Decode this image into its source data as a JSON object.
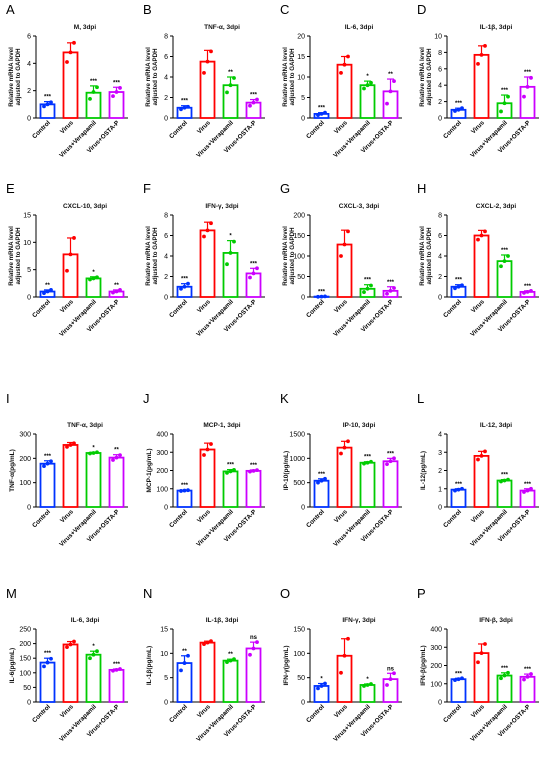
{
  "chart_data": [
    {
      "panel": "A",
      "type": "bar",
      "title": "M, 3dpi",
      "ylabel": "Relative mRNA level adjusted to GAPDH",
      "ylim": [
        0,
        6
      ],
      "yticks": [
        0,
        2,
        4,
        6
      ],
      "categories": [
        "Control",
        "Virus",
        "Virus+Verapamil",
        "Virus+OSTA-P"
      ],
      "values": [
        1.0,
        4.8,
        1.85,
        1.9
      ],
      "errors": [
        0.2,
        0.7,
        0.5,
        0.35
      ],
      "points": [
        [
          0.85,
          1.0,
          1.15
        ],
        [
          4.1,
          4.8,
          5.5
        ],
        [
          1.4,
          1.9,
          2.25
        ],
        [
          1.6,
          1.9,
          2.2
        ]
      ],
      "sig": [
        "***",
        "",
        "***",
        "***"
      ]
    },
    {
      "panel": "B",
      "type": "bar",
      "title": "TNF-α, 3dpi",
      "ylabel": "Relative mRNA level adjusted to GAPDH",
      "ylim": [
        0,
        8
      ],
      "yticks": [
        0,
        2,
        4,
        6,
        8
      ],
      "categories": [
        "Control",
        "Virus",
        "Virus+Verapamil",
        "Virus+OSTA-P"
      ],
      "values": [
        1.0,
        5.5,
        3.2,
        1.5
      ],
      "errors": [
        0.2,
        1.1,
        0.8,
        0.3
      ],
      "points": [
        [
          0.85,
          1.0,
          1.1
        ],
        [
          4.4,
          5.5,
          6.5
        ],
        [
          2.5,
          3.2,
          3.9
        ],
        [
          1.2,
          1.5,
          1.8
        ]
      ],
      "sig": [
        "***",
        "",
        "**",
        "***"
      ]
    },
    {
      "panel": "C",
      "type": "bar",
      "title": "IL-6, 3dpi",
      "ylabel": "Relative mRNA level adjusted to GAPDH",
      "ylim": [
        0,
        20
      ],
      "yticks": [
        0,
        5,
        10,
        15,
        20
      ],
      "categories": [
        "Control",
        "Virus",
        "Virus+Verapamil",
        "Virus+OSTA-P"
      ],
      "values": [
        1.0,
        13.0,
        8.0,
        6.5
      ],
      "errors": [
        0.3,
        2.0,
        1.0,
        3.0
      ],
      "points": [
        [
          0.7,
          1.0,
          1.3
        ],
        [
          11.0,
          13.0,
          15.0
        ],
        [
          7.2,
          8.0,
          8.6
        ],
        [
          3.5,
          6.5,
          9.0
        ]
      ],
      "sig": [
        "***",
        "",
        "*",
        "**"
      ]
    },
    {
      "panel": "D",
      "type": "bar",
      "title": "IL-1β, 3dpi",
      "ylabel": "Relative mRNA level adjusted to GAPDH",
      "ylim": [
        0,
        10
      ],
      "yticks": [
        0,
        2,
        4,
        6,
        8,
        10
      ],
      "categories": [
        "Control",
        "Virus",
        "Virus+Verapamil",
        "Virus+OSTA-P"
      ],
      "values": [
        1.0,
        7.7,
        1.8,
        3.8
      ],
      "errors": [
        0.2,
        1.1,
        1.0,
        1.2
      ],
      "points": [
        [
          0.85,
          1.0,
          1.2
        ],
        [
          6.6,
          7.7,
          8.8
        ],
        [
          0.8,
          1.8,
          2.6
        ],
        [
          2.6,
          3.8,
          4.9
        ]
      ],
      "sig": [
        "***",
        "",
        "***",
        "***"
      ]
    },
    {
      "panel": "E",
      "type": "bar",
      "title": "CXCL-10, 3dpi",
      "ylabel": "Relative mRNA level adjusted to GAPDH",
      "ylim": [
        0,
        15
      ],
      "yticks": [
        0,
        5,
        10,
        15
      ],
      "categories": [
        "Control",
        "Virus",
        "Virus+Verapamil",
        "Virus+OSTA-P"
      ],
      "values": [
        1.0,
        7.8,
        3.4,
        1.0
      ],
      "errors": [
        0.3,
        3.0,
        0.3,
        0.3
      ],
      "points": [
        [
          0.7,
          1.0,
          1.3
        ],
        [
          4.8,
          7.8,
          10.8
        ],
        [
          3.2,
          3.4,
          3.6
        ],
        [
          0.8,
          1.0,
          1.3
        ]
      ],
      "sig": [
        "**",
        "",
        "*",
        "**"
      ]
    },
    {
      "panel": "F",
      "type": "bar",
      "title": "IFN-γ, 3dpi",
      "ylabel": "Relative mRNA level adjusted to GAPDH",
      "ylim": [
        0,
        8
      ],
      "yticks": [
        0,
        2,
        4,
        6,
        8
      ],
      "categories": [
        "Control",
        "Virus",
        "Virus+Verapamil",
        "Virus+OSTA-P"
      ],
      "values": [
        1.0,
        6.5,
        4.3,
        2.3
      ],
      "errors": [
        0.3,
        0.8,
        1.2,
        0.5
      ],
      "points": [
        [
          0.8,
          1.0,
          1.3
        ],
        [
          5.9,
          6.5,
          7.2
        ],
        [
          3.2,
          4.3,
          5.4
        ],
        [
          1.9,
          2.3,
          2.8
        ]
      ],
      "sig": [
        "***",
        "",
        "*",
        "***"
      ]
    },
    {
      "panel": "G",
      "type": "bar",
      "title": "CXCL-3, 3dpi",
      "ylabel": "Relative mRNA level adjusted to GAPDH",
      "ylim": [
        0,
        200
      ],
      "yticks": [
        0,
        50,
        100,
        150,
        200
      ],
      "categories": [
        "Control",
        "Virus",
        "Virus+Verapamil",
        "Virus+OSTA-P"
      ],
      "values": [
        1,
        128,
        20,
        15
      ],
      "errors": [
        0.5,
        35,
        10,
        10
      ],
      "points": [
        [
          0.5,
          1,
          1.5
        ],
        [
          100,
          128,
          160
        ],
        [
          12,
          20,
          28
        ],
        [
          8,
          15,
          22
        ]
      ],
      "sig": [
        "***",
        "",
        "***",
        "***"
      ]
    },
    {
      "panel": "H",
      "type": "bar",
      "title": "CXCL-2, 3dpi",
      "ylabel": "Relative mRNA level adjusted to GAPDH",
      "ylim": [
        0,
        8
      ],
      "yticks": [
        0,
        2,
        4,
        6,
        8
      ],
      "categories": [
        "Control",
        "Virus",
        "Virus+Verapamil",
        "Virus+OSTA-P"
      ],
      "values": [
        1.0,
        6.0,
        3.5,
        0.5
      ],
      "errors": [
        0.2,
        0.5,
        0.6,
        0.1
      ],
      "points": [
        [
          0.85,
          1.0,
          1.15
        ],
        [
          5.6,
          6.0,
          6.4
        ],
        [
          3.0,
          3.5,
          4.0
        ],
        [
          0.4,
          0.5,
          0.6
        ]
      ],
      "sig": [
        "***",
        "",
        "***",
        "***"
      ]
    },
    {
      "panel": "I",
      "type": "bar",
      "title": "TNF-α, 3dpi",
      "ylabel": "TNF-α(pg/mL)",
      "ylim": [
        0,
        300
      ],
      "yticks": [
        0,
        100,
        200,
        300
      ],
      "categories": [
        "Control",
        "Virus",
        "Virus+Verapamil",
        "Virus+OSTA-P"
      ],
      "values": [
        178,
        255,
        222,
        203
      ],
      "errors": [
        12,
        10,
        3,
        12
      ],
      "points": [
        [
          168,
          178,
          188
        ],
        [
          247,
          255,
          262
        ],
        [
          220,
          222,
          225
        ],
        [
          193,
          203,
          213
        ]
      ],
      "sig": [
        "***",
        "",
        "*",
        "**"
      ]
    },
    {
      "panel": "J",
      "type": "bar",
      "title": "MCP-1, 3dpi",
      "ylabel": "MCP-1(pg/mL)",
      "ylim": [
        0,
        400
      ],
      "yticks": [
        0,
        100,
        200,
        300,
        400
      ],
      "categories": [
        "Control",
        "Virus",
        "Virus+Verapamil",
        "Virus+OSTA-P"
      ],
      "values": [
        90,
        315,
        195,
        198
      ],
      "errors": [
        3,
        35,
        10,
        5
      ],
      "points": [
        [
          88,
          90,
          92
        ],
        [
          285,
          315,
          345
        ],
        [
          187,
          195,
          203
        ],
        [
          194,
          198,
          202
        ]
      ],
      "sig": [
        "***",
        "",
        "***",
        "***"
      ]
    },
    {
      "panel": "K",
      "type": "bar",
      "title": "IP-10, 3dpi",
      "ylabel": "IP-10(pg/mL)",
      "ylim": [
        0,
        1500
      ],
      "yticks": [
        0,
        500,
        1000,
        1500
      ],
      "categories": [
        "Control",
        "Virus",
        "Virus+Verapamil",
        "Virus+OSTA-P"
      ],
      "values": [
        540,
        1220,
        910,
        940
      ],
      "errors": [
        40,
        130,
        20,
        60
      ],
      "points": [
        [
          500,
          540,
          580
        ],
        [
          1100,
          1220,
          1350
        ],
        [
          890,
          910,
          930
        ],
        [
          880,
          940,
          1000
        ]
      ],
      "sig": [
        "***",
        "",
        "***",
        "***"
      ]
    },
    {
      "panel": "L",
      "type": "bar",
      "title": "IL-12, 3dpi",
      "ylabel": "IL-12(pg/mL)",
      "ylim": [
        0,
        4
      ],
      "yticks": [
        0,
        1,
        2,
        3,
        4
      ],
      "categories": [
        "Control",
        "Virus",
        "Virus+Verapamil",
        "Virus+OSTA-P"
      ],
      "values": [
        0.95,
        2.8,
        1.45,
        0.9
      ],
      "errors": [
        0.05,
        0.25,
        0.05,
        0.1
      ],
      "points": [
        [
          0.9,
          0.95,
          1.0
        ],
        [
          2.6,
          2.8,
          3.05
        ],
        [
          1.4,
          1.45,
          1.5
        ],
        [
          0.82,
          0.9,
          1.0
        ]
      ],
      "sig": [
        "***",
        "",
        "***",
        "***"
      ]
    },
    {
      "panel": "M",
      "type": "bar",
      "title": "IL-6, 3dpi",
      "ylabel": "IL-6(pg/mL)",
      "ylim": [
        0,
        250
      ],
      "yticks": [
        0,
        50,
        100,
        150,
        200,
        250
      ],
      "categories": [
        "Control",
        "Virus",
        "Virus+Verapamil",
        "Virus+OSTA-P"
      ],
      "values": [
        135,
        197,
        162,
        110
      ],
      "errors": [
        15,
        10,
        12,
        3
      ],
      "points": [
        [
          122,
          135,
          148
        ],
        [
          188,
          197,
          207
        ],
        [
          150,
          162,
          174
        ],
        [
          107,
          110,
          113
        ]
      ],
      "sig": [
        "***",
        "",
        "*",
        "***"
      ]
    },
    {
      "panel": "N",
      "type": "bar",
      "title": "IL-1β, 3dpi",
      "ylabel": "IL-1β(pg/mL)",
      "ylim": [
        0,
        15
      ],
      "yticks": [
        0,
        5,
        10,
        15
      ],
      "categories": [
        "Control",
        "Virus",
        "Virus+Verapamil",
        "Virus+OSTA-P"
      ],
      "values": [
        8.0,
        12.2,
        8.5,
        11.0
      ],
      "errors": [
        1.5,
        0.3,
        0.3,
        1.3
      ],
      "points": [
        [
          6.5,
          8.0,
          9.5
        ],
        [
          11.9,
          12.2,
          12.5
        ],
        [
          8.2,
          8.5,
          8.8
        ],
        [
          9.7,
          11.0,
          12.3
        ]
      ],
      "sig": [
        "**",
        "",
        "**",
        "ns"
      ]
    },
    {
      "panel": "O",
      "type": "bar",
      "title": "IFN-γ, 3dpi",
      "ylabel": "IFN-γ(pg/mL)",
      "ylim": [
        0,
        150
      ],
      "yticks": [
        0,
        50,
        100,
        150
      ],
      "categories": [
        "Control",
        "Virus",
        "Virus+Verapamil",
        "Virus+OSTA-P"
      ],
      "values": [
        33,
        95,
        35,
        47
      ],
      "errors": [
        5,
        35,
        2,
        12
      ],
      "points": [
        [
          28,
          33,
          38
        ],
        [
          60,
          95,
          130
        ],
        [
          33,
          35,
          37
        ],
        [
          35,
          47,
          59
        ]
      ],
      "sig": [
        "*",
        "",
        "*",
        "ns"
      ]
    },
    {
      "panel": "P",
      "type": "bar",
      "title": "IFN-β, 3dpi",
      "ylabel": "IFN-β(pg/mL)",
      "ylim": [
        0,
        400
      ],
      "yticks": [
        0,
        100,
        200,
        300,
        400
      ],
      "categories": [
        "Control",
        "Virus",
        "Virus+Verapamil",
        "Virus+OSTA-P"
      ],
      "values": [
        125,
        268,
        145,
        138
      ],
      "errors": [
        5,
        50,
        15,
        15
      ],
      "points": [
        [
          120,
          125,
          130
        ],
        [
          218,
          268,
          318
        ],
        [
          130,
          145,
          160
        ],
        [
          123,
          138,
          153
        ]
      ],
      "sig": [
        "***",
        "",
        "***",
        "***"
      ]
    }
  ],
  "colors": {
    "Control": "#0033ff",
    "Virus": "#ff0000",
    "Virus+Verapamil": "#00cc00",
    "Virus+OSTA-P": "#cc00ff"
  }
}
